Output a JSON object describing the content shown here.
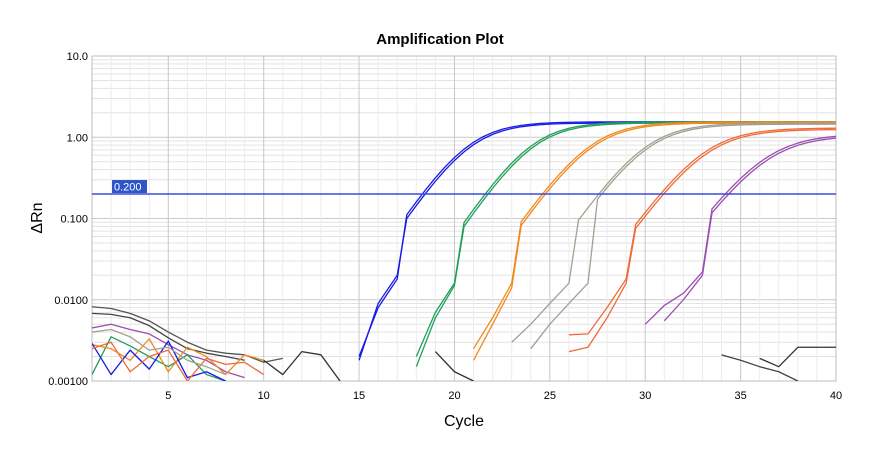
{
  "chart_data": {
    "type": "line",
    "title": "Amplification Plot",
    "xlabel": "Cycle",
    "ylabel": "ΔRn",
    "y_scale": "log",
    "xlim": [
      1,
      40
    ],
    "ylim": [
      0.001,
      10.0
    ],
    "grid": true,
    "x_ticks": [
      5,
      10,
      15,
      20,
      25,
      30,
      35,
      40
    ],
    "x_tick_labels": [
      "5",
      "10",
      "15",
      "20",
      "25",
      "30",
      "35",
      "40"
    ],
    "y_ticks": [
      0.001,
      0.01,
      0.1,
      1.0,
      10.0
    ],
    "y_tick_labels": [
      "0.00100",
      "0.0100",
      "0.100",
      "1.00",
      "10.0"
    ],
    "threshold": {
      "value": 0.2,
      "label": "0.200",
      "color": "#3a4be0"
    },
    "curve_template_x": [
      15,
      16,
      17,
      18,
      19,
      20,
      21,
      22,
      23,
      24,
      25,
      26,
      27,
      28,
      29,
      30,
      31,
      32,
      33,
      34,
      35,
      36,
      37,
      38,
      39,
      40
    ],
    "series": [
      {
        "color": "#1a1ae6",
        "plateau": 1.55,
        "ct": 20.7,
        "slope": 1.25,
        "start": 14.7,
        "early": [
          [
            15,
            0.002
          ],
          [
            16,
            0.008
          ],
          [
            17,
            0.018
          ]
        ]
      },
      {
        "color": "#1a1ae6",
        "plateau": 1.5,
        "ct": 20.8,
        "slope": 1.25,
        "start": 14.7,
        "early": [
          [
            15,
            0.0018
          ],
          [
            16,
            0.009
          ],
          [
            17,
            0.02
          ]
        ]
      },
      {
        "color": "#1e9e5a",
        "plateau": 1.55,
        "ct": 24.0,
        "slope": 1.25,
        "start": 17.8,
        "early": [
          [
            18,
            0.002
          ],
          [
            19,
            0.007
          ],
          [
            20,
            0.016
          ]
        ]
      },
      {
        "color": "#1e9e5a",
        "plateau": 1.5,
        "ct": 24.1,
        "slope": 1.25,
        "start": 17.8,
        "early": [
          [
            18,
            0.0015
          ],
          [
            19,
            0.006
          ],
          [
            20,
            0.015
          ]
        ]
      },
      {
        "color": "#f08a1c",
        "plateau": 1.55,
        "ct": 27.1,
        "slope": 1.3,
        "start": 20.7,
        "early": [
          [
            21,
            0.0025
          ],
          [
            22,
            0.006
          ],
          [
            23,
            0.016
          ]
        ]
      },
      {
        "color": "#f08a1c",
        "plateau": 1.5,
        "ct": 27.2,
        "slope": 1.3,
        "start": 20.7,
        "early": [
          [
            21,
            0.0018
          ],
          [
            22,
            0.005
          ],
          [
            23,
            0.014
          ]
        ]
      },
      {
        "color": "#a0a090",
        "plateau": 1.5,
        "ct": 30.0,
        "slope": 1.3,
        "start": 22.8,
        "early": [
          [
            23,
            0.003
          ],
          [
            24,
            0.005
          ],
          [
            25,
            0.009
          ],
          [
            26,
            0.016
          ]
        ]
      },
      {
        "color": "#a0a090",
        "plateau": 1.45,
        "ct": 30.1,
        "slope": 1.3,
        "start": 23.9,
        "early": [
          [
            24,
            0.0025
          ],
          [
            25,
            0.005
          ],
          [
            26,
            0.009
          ],
          [
            27,
            0.016
          ]
        ]
      },
      {
        "color": "#f06a3a",
        "plateau": 1.3,
        "ct": 33.1,
        "slope": 1.35,
        "start": 25.5,
        "early": [
          [
            26,
            0.0037
          ],
          [
            27,
            0.0038
          ],
          [
            28,
            0.008
          ],
          [
            29,
            0.018
          ]
        ]
      },
      {
        "color": "#f06a3a",
        "plateau": 1.25,
        "ct": 33.2,
        "slope": 1.35,
        "start": 25.5,
        "early": [
          [
            26,
            0.0023
          ],
          [
            27,
            0.0026
          ],
          [
            28,
            0.006
          ],
          [
            29,
            0.016
          ]
        ]
      },
      {
        "color": "#9a4fb0",
        "plateau": 1.1,
        "ct": 36.3,
        "slope": 1.4,
        "start": 29.0,
        "early": [
          [
            30,
            0.005
          ],
          [
            31,
            0.0085
          ],
          [
            32,
            0.012
          ],
          [
            33,
            0.022
          ]
        ]
      },
      {
        "color": "#9a4fb0",
        "plateau": 1.05,
        "ct": 36.4,
        "slope": 1.4,
        "start": 30.0,
        "early": [
          [
            31,
            0.0055
          ],
          [
            32,
            0.01
          ],
          [
            33,
            0.02
          ]
        ]
      }
    ],
    "baseline_noise": [
      {
        "color": "#555555",
        "points": [
          [
            1,
            0.0082
          ],
          [
            2,
            0.0078
          ],
          [
            3,
            0.0068
          ],
          [
            4,
            0.0055
          ],
          [
            5,
            0.004
          ],
          [
            6,
            0.003
          ],
          [
            7,
            0.0024
          ],
          [
            8,
            0.0022
          ],
          [
            9,
            0.0021
          ],
          [
            10,
            0.0017
          ],
          [
            11,
            0.0019
          ]
        ]
      },
      {
        "color": "#444444",
        "points": [
          [
            1,
            0.0068
          ],
          [
            2,
            0.0066
          ],
          [
            3,
            0.006
          ],
          [
            4,
            0.0048
          ],
          [
            5,
            0.0034
          ],
          [
            6,
            0.0025
          ],
          [
            7,
            0.0022
          ],
          [
            8,
            0.002
          ],
          [
            9,
            0.0018
          ]
        ]
      },
      {
        "color": "#9a4fb0",
        "points": [
          [
            1,
            0.0045
          ],
          [
            2,
            0.005
          ],
          [
            3,
            0.0043
          ],
          [
            4,
            0.0038
          ],
          [
            5,
            0.0028
          ],
          [
            6,
            0.0021
          ],
          [
            7,
            0.0018
          ],
          [
            8,
            0.0013
          ],
          [
            9,
            0.0011
          ]
        ]
      },
      {
        "color": "#1e9e5a",
        "points": [
          [
            1,
            0.0012
          ],
          [
            2,
            0.0035
          ],
          [
            3,
            0.0027
          ],
          [
            4,
            0.002
          ],
          [
            5,
            0.0015
          ],
          [
            6,
            0.0021
          ],
          [
            7,
            0.0012
          ],
          [
            8,
            0.001
          ]
        ]
      },
      {
        "color": "#f08a1c",
        "points": [
          [
            1,
            0.0028
          ],
          [
            2,
            0.0025
          ],
          [
            3,
            0.0018
          ],
          [
            4,
            0.0033
          ],
          [
            5,
            0.0013
          ],
          [
            6,
            0.0026
          ],
          [
            7,
            0.002
          ],
          [
            8,
            0.0012
          ],
          [
            9,
            0.0021
          ],
          [
            10,
            0.0018
          ]
        ]
      },
      {
        "color": "#1a1ae6",
        "points": [
          [
            1,
            0.0029
          ],
          [
            2,
            0.0012
          ],
          [
            3,
            0.0024
          ],
          [
            4,
            0.0014
          ],
          [
            5,
            0.0031
          ],
          [
            6,
            0.0011
          ],
          [
            7,
            0.0013
          ],
          [
            8,
            0.001
          ]
        ]
      },
      {
        "color": "#f06a3a",
        "points": [
          [
            1,
            0.0025
          ],
          [
            2,
            0.003
          ],
          [
            3,
            0.0013
          ],
          [
            4,
            0.002
          ],
          [
            5,
            0.0024
          ],
          [
            6,
            0.001
          ],
          [
            7,
            0.0019
          ],
          [
            8,
            0.0016
          ],
          [
            9,
            0.0017
          ],
          [
            10,
            0.0012
          ]
        ]
      },
      {
        "color": "#a0a090",
        "points": [
          [
            1,
            0.004
          ],
          [
            2,
            0.0043
          ],
          [
            3,
            0.0035
          ],
          [
            4,
            0.0024
          ],
          [
            5,
            0.0026
          ],
          [
            6,
            0.0018
          ],
          [
            7,
            0.0015
          ],
          [
            8,
            0.0012
          ]
        ]
      },
      {
        "color": "#333333",
        "points": [
          [
            10,
            0.0018
          ],
          [
            11,
            0.0012
          ],
          [
            12,
            0.0023
          ],
          [
            13,
            0.0021
          ],
          [
            14,
            0.001
          ]
        ]
      },
      {
        "color": "#333333",
        "points": [
          [
            19,
            0.0023
          ],
          [
            20,
            0.0013
          ],
          [
            21,
            0.001
          ]
        ]
      },
      {
        "color": "#333333",
        "points": [
          [
            36,
            0.0019
          ],
          [
            37,
            0.0015
          ],
          [
            38,
            0.0026
          ],
          [
            40,
            0.0026
          ]
        ]
      },
      {
        "color": "#444444",
        "points": [
          [
            34,
            0.0021
          ],
          [
            35,
            0.0018
          ],
          [
            36,
            0.0015
          ],
          [
            37,
            0.0013
          ],
          [
            38,
            0.001
          ]
        ]
      }
    ]
  }
}
